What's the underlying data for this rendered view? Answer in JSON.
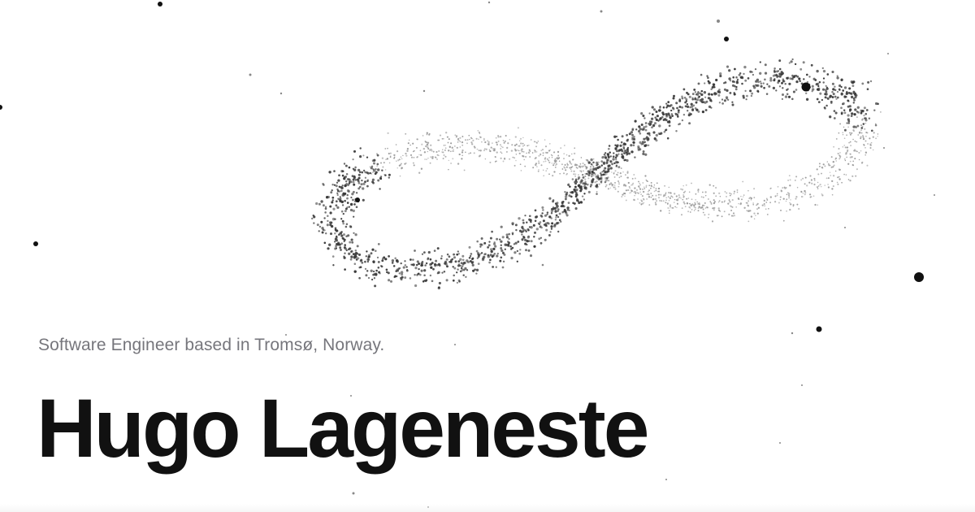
{
  "hero": {
    "tagline": "Software Engineer based in Tromsø, Norway.",
    "name": "Hugo Lageneste"
  },
  "visual": {
    "shape": "infinity-particle-cloud",
    "colors": {
      "dark_particles": "#3a3a3a",
      "light_particles": "#9a9a9a",
      "stray_dots": "#111111",
      "background": "#ffffff"
    }
  }
}
